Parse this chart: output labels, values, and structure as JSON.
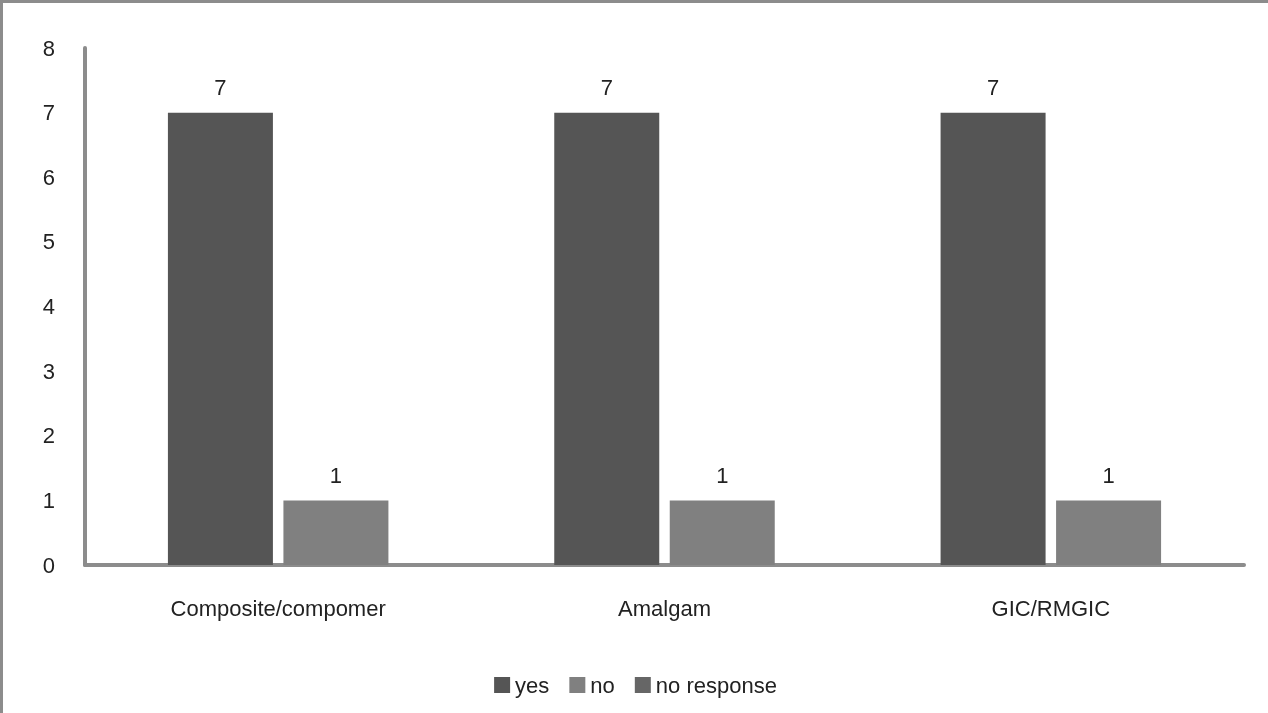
{
  "chart_data": {
    "type": "bar",
    "categories": [
      "Composite/compomer",
      "Amalgam",
      "GIC/RMGIC"
    ],
    "series": [
      {
        "name": "yes",
        "color": "#555555",
        "values": [
          7,
          7,
          7
        ]
      },
      {
        "name": "no",
        "color": "#808080",
        "values": [
          1,
          1,
          1
        ]
      },
      {
        "name": "no response",
        "color": "#666666",
        "values": [
          null,
          null,
          null
        ]
      }
    ],
    "ylim": [
      0,
      8
    ],
    "yticks": [
      0,
      1,
      2,
      3,
      4,
      5,
      6,
      7,
      8
    ],
    "grid": false,
    "legend": "bottom",
    "data_labels": true
  }
}
